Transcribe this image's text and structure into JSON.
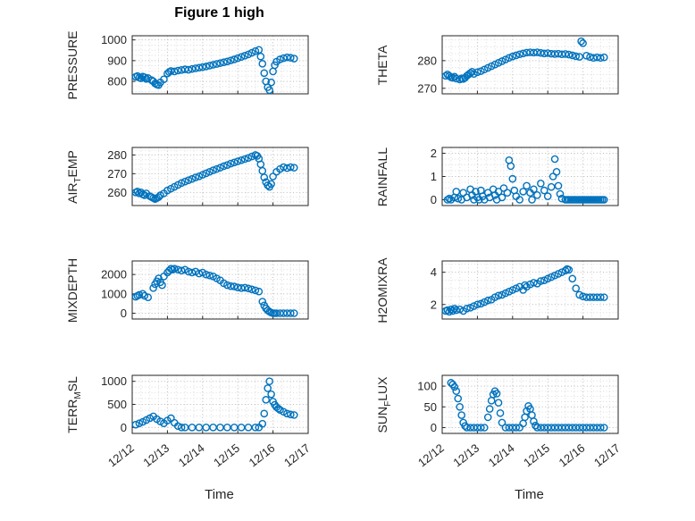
{
  "figure": {
    "title": "Figure 1 high",
    "xlabel": "Time",
    "accent_color": "#0072BD",
    "axis_color": "#262626",
    "grid_color": "#b9b9b9",
    "minor_grid_color": "#dadada",
    "xticklabels": [
      "12/12",
      "12/13",
      "12/14",
      "12/15",
      "12/16",
      "12/17"
    ]
  },
  "chart_data": [
    {
      "type": "scatter",
      "name": "PRESSURE",
      "ylabel": {
        "pre": "PRESSURE",
        "sub": "",
        "post": ""
      },
      "xlim": [
        0,
        5
      ],
      "xticks": [
        0,
        1,
        2,
        3,
        4,
        5
      ],
      "xminor": 0.25,
      "ylim": [
        740,
        1020
      ],
      "yticks": [
        800,
        900,
        1000
      ],
      "yminor": 25,
      "show_xticklabels": false,
      "x": [
        0.1,
        0.15,
        0.2,
        0.25,
        0.3,
        0.35,
        0.4,
        0.45,
        0.55,
        0.6,
        0.65,
        0.7,
        0.75,
        0.8,
        0.9,
        1.0,
        1.05,
        1.1,
        1.2,
        1.3,
        1.4,
        1.5,
        1.6,
        1.7,
        1.8,
        1.9,
        2.0,
        2.1,
        2.2,
        2.3,
        2.4,
        2.5,
        2.6,
        2.7,
        2.8,
        2.9,
        3.0,
        3.1,
        3.2,
        3.3,
        3.4,
        3.5,
        3.6,
        3.65,
        3.7,
        3.75,
        3.8,
        3.85,
        3.9,
        3.95,
        4.0,
        4.05,
        4.1,
        4.2,
        4.3,
        4.4,
        4.5,
        4.6
      ],
      "y": [
        822,
        826,
        818,
        815,
        823,
        820,
        812,
        816,
        806,
        800,
        790,
        785,
        782,
        795,
        810,
        838,
        845,
        850,
        848,
        852,
        855,
        858,
        856,
        860,
        863,
        866,
        869,
        872,
        876,
        880,
        884,
        888,
        892,
        896,
        901,
        906,
        912,
        918,
        924,
        930,
        938,
        946,
        952,
        920,
        885,
        840,
        800,
        772,
        758,
        795,
        848,
        878,
        895,
        906,
        912,
        916,
        914,
        910
      ]
    },
    {
      "type": "scatter",
      "name": "THETA",
      "ylabel": {
        "pre": "THETA",
        "sub": "",
        "post": ""
      },
      "xlim": [
        0,
        5
      ],
      "xticks": [
        0,
        1,
        2,
        3,
        4,
        5
      ],
      "xminor": 0.25,
      "ylim": [
        268,
        289
      ],
      "yticks": [
        270,
        280
      ],
      "yminor": 2.5,
      "show_xticklabels": false,
      "x": [
        0.1,
        0.15,
        0.2,
        0.25,
        0.3,
        0.35,
        0.4,
        0.5,
        0.55,
        0.6,
        0.65,
        0.7,
        0.75,
        0.8,
        0.85,
        0.9,
        1.0,
        1.1,
        1.2,
        1.3,
        1.4,
        1.5,
        1.6,
        1.7,
        1.8,
        1.9,
        2.0,
        2.1,
        2.2,
        2.3,
        2.4,
        2.5,
        2.6,
        2.7,
        2.8,
        2.9,
        3.0,
        3.1,
        3.2,
        3.3,
        3.4,
        3.5,
        3.6,
        3.7,
        3.8,
        3.9,
        3.95,
        4.0,
        4.1,
        4.2,
        4.3,
        4.4,
        4.5,
        4.6
      ],
      "y": [
        274.5,
        275,
        274.5,
        274,
        273.8,
        274.2,
        273.5,
        273.2,
        273.6,
        273.4,
        273.8,
        274.5,
        275,
        275.5,
        276,
        275.2,
        275.8,
        276.2,
        276.8,
        277.4,
        278,
        278.6,
        279.2,
        279.8,
        280.4,
        281,
        281.5,
        281.9,
        282.3,
        282.6,
        282.9,
        283,
        282.9,
        283,
        282.8,
        282.6,
        282.7,
        282.5,
        282.4,
        282.5,
        282.3,
        282.4,
        282.2,
        281.9,
        281.6,
        281.4,
        287,
        286.3,
        281.8,
        281.3,
        281,
        281.2,
        281,
        281.2
      ]
    },
    {
      "type": "scatter",
      "name": "AIR_TEMP",
      "ylabel": {
        "pre": "AIR",
        "sub": "T",
        "post": "EMP"
      },
      "xlim": [
        0,
        5
      ],
      "xticks": [
        0,
        1,
        2,
        3,
        4,
        5
      ],
      "xminor": 0.25,
      "ylim": [
        253,
        284
      ],
      "yticks": [
        260,
        270,
        280
      ],
      "yminor": 2.5,
      "show_xticklabels": false,
      "x": [
        0.1,
        0.15,
        0.2,
        0.25,
        0.3,
        0.35,
        0.4,
        0.5,
        0.55,
        0.6,
        0.65,
        0.7,
        0.75,
        0.8,
        0.9,
        1.0,
        1.1,
        1.2,
        1.3,
        1.4,
        1.5,
        1.6,
        1.7,
        1.8,
        1.9,
        2.0,
        2.1,
        2.2,
        2.3,
        2.4,
        2.5,
        2.6,
        2.7,
        2.8,
        2.9,
        3.0,
        3.1,
        3.2,
        3.3,
        3.4,
        3.5,
        3.55,
        3.6,
        3.65,
        3.7,
        3.75,
        3.8,
        3.85,
        3.9,
        3.95,
        4.0,
        4.1,
        4.2,
        4.3,
        4.4,
        4.5,
        4.6
      ],
      "y": [
        260,
        260.5,
        259.5,
        260,
        259,
        258.5,
        259.5,
        258,
        257.5,
        257,
        256.5,
        257,
        257.5,
        258.5,
        259.5,
        261,
        262,
        263,
        264,
        265,
        265.8,
        266.5,
        267.2,
        268,
        268.6,
        269.4,
        270.2,
        271,
        271.8,
        272.5,
        273.2,
        274,
        274.6,
        275.4,
        276,
        276.6,
        277.2,
        277.8,
        278.4,
        279.2,
        280,
        279.5,
        278,
        275,
        271.5,
        268,
        265.5,
        263.8,
        263,
        264.5,
        268.5,
        271,
        272.5,
        273.5,
        273,
        273.5,
        273.2
      ]
    },
    {
      "type": "scatter",
      "name": "RAINFALL",
      "ylabel": {
        "pre": "RAINFALL",
        "sub": "",
        "post": ""
      },
      "xlim": [
        0,
        5
      ],
      "xticks": [
        0,
        1,
        2,
        3,
        4,
        5
      ],
      "xminor": 0.25,
      "ylim": [
        -0.25,
        2.25
      ],
      "yticks": [
        0,
        1,
        2
      ],
      "yminor": 0.25,
      "show_xticklabels": false,
      "x": [
        0.15,
        0.2,
        0.25,
        0.35,
        0.4,
        0.45,
        0.55,
        0.6,
        0.7,
        0.8,
        0.85,
        0.9,
        0.95,
        1.0,
        1.05,
        1.1,
        1.15,
        1.2,
        1.3,
        1.35,
        1.45,
        1.5,
        1.55,
        1.6,
        1.7,
        1.75,
        1.85,
        1.9,
        1.95,
        2.0,
        2.05,
        2.1,
        2.2,
        2.3,
        2.4,
        2.5,
        2.55,
        2.6,
        2.7,
        2.8,
        2.9,
        3.0,
        3.1,
        3.15,
        3.2,
        3.25,
        3.3,
        3.35,
        3.4,
        3.5,
        3.55,
        3.6,
        3.65,
        3.7,
        3.75,
        3.8,
        3.85,
        3.9,
        3.95,
        4.0,
        4.05,
        4.1,
        4.15,
        4.2,
        4.25,
        4.3,
        4.35,
        4.4,
        4.45,
        4.5,
        4.55,
        4.6
      ],
      "y": [
        0,
        0.05,
        0,
        0.1,
        0.35,
        0.05,
        0,
        0.3,
        0.1,
        0.45,
        0.2,
        0,
        0.35,
        0.1,
        0,
        0.4,
        0.15,
        0,
        0.3,
        0.1,
        0.45,
        0.2,
        0,
        0.35,
        0.1,
        0.5,
        0.3,
        1.7,
        1.45,
        0.9,
        0.4,
        0.15,
        0,
        0.35,
        0.6,
        0.3,
        0,
        0.45,
        0.2,
        0.7,
        0.4,
        0.15,
        0.55,
        1.0,
        1.75,
        1.2,
        0.6,
        0.25,
        0.05,
        0,
        0,
        0,
        0,
        0,
        0,
        0,
        0,
        0,
        0,
        0,
        0,
        0,
        0,
        0,
        0,
        0,
        0,
        0,
        0,
        0,
        0,
        0
      ]
    },
    {
      "type": "scatter",
      "name": "MIXDEPTH",
      "ylabel": {
        "pre": "MIXDEPTH",
        "sub": "",
        "post": ""
      },
      "xlim": [
        0,
        5
      ],
      "xticks": [
        0,
        1,
        2,
        3,
        4,
        5
      ],
      "xminor": 0.25,
      "ylim": [
        -300,
        2700
      ],
      "yticks": [
        0,
        1000,
        2000
      ],
      "yminor": 250,
      "show_xticklabels": false,
      "x": [
        0.1,
        0.15,
        0.2,
        0.3,
        0.35,
        0.45,
        0.6,
        0.65,
        0.7,
        0.75,
        0.8,
        0.85,
        0.9,
        1.0,
        1.05,
        1.1,
        1.15,
        1.2,
        1.3,
        1.4,
        1.5,
        1.6,
        1.7,
        1.8,
        1.9,
        2.0,
        2.1,
        2.2,
        2.3,
        2.4,
        2.5,
        2.6,
        2.7,
        2.8,
        2.9,
        3.0,
        3.1,
        3.2,
        3.3,
        3.4,
        3.5,
        3.6,
        3.7,
        3.75,
        3.8,
        3.85,
        3.9,
        3.95,
        4.0,
        4.05,
        4.1,
        4.2,
        4.3,
        4.4,
        4.5,
        4.6
      ],
      "y": [
        850,
        900,
        950,
        1000,
        900,
        820,
        1300,
        1500,
        1650,
        1800,
        1600,
        1450,
        1900,
        2100,
        2200,
        2300,
        2250,
        2300,
        2250,
        2200,
        2250,
        2150,
        2100,
        2150,
        2050,
        2100,
        2000,
        1950,
        1900,
        1800,
        1700,
        1550,
        1450,
        1400,
        1380,
        1330,
        1300,
        1320,
        1280,
        1230,
        1180,
        1120,
        600,
        400,
        250,
        150,
        80,
        30,
        0,
        0,
        0,
        0,
        0,
        0,
        0,
        0
      ]
    },
    {
      "type": "scatter",
      "name": "H2OMIXRA",
      "ylabel": {
        "pre": "H2OMIXRA",
        "sub": "",
        "post": ""
      },
      "xlim": [
        0,
        5
      ],
      "xticks": [
        0,
        1,
        2,
        3,
        4,
        5
      ],
      "xminor": 0.25,
      "ylim": [
        1.1,
        4.7
      ],
      "yticks": [
        2,
        4
      ],
      "yminor": 0.5,
      "show_xticklabels": false,
      "x": [
        0.1,
        0.15,
        0.2,
        0.25,
        0.3,
        0.35,
        0.4,
        0.5,
        0.6,
        0.7,
        0.8,
        0.9,
        1.0,
        1.1,
        1.2,
        1.3,
        1.4,
        1.5,
        1.6,
        1.7,
        1.8,
        1.9,
        2.0,
        2.1,
        2.2,
        2.3,
        2.35,
        2.4,
        2.5,
        2.6,
        2.7,
        2.8,
        2.9,
        3.0,
        3.1,
        3.2,
        3.3,
        3.4,
        3.5,
        3.55,
        3.6,
        3.7,
        3.8,
        3.9,
        4.0,
        4.1,
        4.2,
        4.3,
        4.4,
        4.5,
        4.6
      ],
      "y": [
        1.6,
        1.65,
        1.55,
        1.7,
        1.6,
        1.75,
        1.65,
        1.7,
        1.6,
        1.75,
        1.8,
        1.9,
        2.0,
        2.05,
        2.15,
        2.25,
        2.3,
        2.45,
        2.55,
        2.6,
        2.7,
        2.8,
        2.9,
        3.0,
        3.1,
        2.9,
        3.2,
        3.1,
        3.25,
        3.35,
        3.3,
        3.45,
        3.5,
        3.6,
        3.7,
        3.8,
        3.9,
        4.0,
        4.1,
        4.2,
        4.15,
        3.6,
        3.0,
        2.6,
        2.5,
        2.45,
        2.45,
        2.45,
        2.45,
        2.45,
        2.45
      ]
    },
    {
      "type": "scatter",
      "name": "TERR_MSL",
      "ylabel": {
        "pre": "TERR",
        "sub": "M",
        "post": "SL"
      },
      "xlim": [
        0,
        5
      ],
      "xticks": [
        0,
        1,
        2,
        3,
        4,
        5
      ],
      "xminor": 0.25,
      "ylim": [
        -130,
        1130
      ],
      "yticks": [
        0,
        500,
        1000
      ],
      "yminor": 125,
      "show_xticklabels": true,
      "x": [
        0.1,
        0.2,
        0.3,
        0.4,
        0.5,
        0.6,
        0.7,
        0.8,
        0.9,
        1.0,
        1.1,
        1.2,
        1.3,
        1.4,
        1.5,
        1.7,
        1.9,
        2.1,
        2.3,
        2.5,
        2.7,
        2.9,
        3.1,
        3.3,
        3.5,
        3.6,
        3.7,
        3.75,
        3.8,
        3.85,
        3.9,
        3.95,
        4.0,
        4.05,
        4.1,
        4.15,
        4.2,
        4.3,
        4.4,
        4.5,
        4.6
      ],
      "y": [
        60,
        90,
        120,
        160,
        200,
        240,
        180,
        130,
        90,
        150,
        200,
        100,
        30,
        0,
        0,
        0,
        0,
        0,
        0,
        0,
        0,
        0,
        0,
        0,
        0,
        0,
        80,
        300,
        600,
        850,
        1000,
        720,
        560,
        490,
        440,
        410,
        380,
        340,
        300,
        280,
        270
      ]
    },
    {
      "type": "scatter",
      "name": "SUN_FLUX",
      "ylabel": {
        "pre": "SUN",
        "sub": "F",
        "post": "LUX"
      },
      "xlim": [
        0,
        5
      ],
      "xticks": [
        0,
        1,
        2,
        3,
        4,
        5
      ],
      "xminor": 0.25,
      "ylim": [
        -14,
        126
      ],
      "yticks": [
        0,
        50,
        100
      ],
      "yminor": 12.5,
      "show_xticklabels": true,
      "x": [
        0.25,
        0.3,
        0.35,
        0.4,
        0.45,
        0.5,
        0.55,
        0.6,
        0.65,
        0.7,
        0.8,
        0.9,
        1.0,
        1.1,
        1.2,
        1.3,
        1.35,
        1.4,
        1.45,
        1.5,
        1.55,
        1.6,
        1.65,
        1.7,
        1.8,
        1.9,
        2.0,
        2.1,
        2.2,
        2.3,
        2.35,
        2.4,
        2.45,
        2.5,
        2.55,
        2.6,
        2.65,
        2.7,
        2.8,
        2.9,
        3.0,
        3.1,
        3.2,
        3.3,
        3.4,
        3.5,
        3.6,
        3.7,
        3.8,
        3.9,
        4.0,
        4.1,
        4.2,
        4.3,
        4.4,
        4.5,
        4.6
      ],
      "y": [
        108,
        104,
        98,
        88,
        70,
        50,
        30,
        12,
        4,
        0,
        0,
        0,
        0,
        0,
        0,
        25,
        45,
        65,
        80,
        88,
        82,
        60,
        35,
        12,
        0,
        0,
        0,
        0,
        0,
        10,
        25,
        40,
        52,
        45,
        30,
        15,
        5,
        0,
        0,
        0,
        0,
        0,
        0,
        0,
        0,
        0,
        0,
        0,
        0,
        0,
        0,
        0,
        0,
        0,
        0,
        0,
        0
      ]
    }
  ]
}
